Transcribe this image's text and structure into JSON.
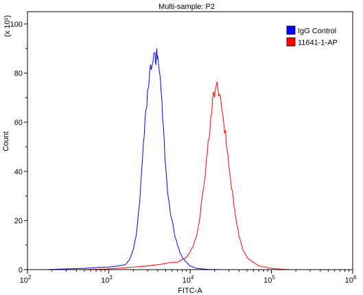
{
  "chart_data": {
    "type": "line",
    "title": "Multi-sample: P2",
    "xlabel": "FITC-A",
    "ylabel": "Count",
    "y_multiplier_label": "(x 10¹)",
    "x_scale": "log",
    "xlim": [
      100,
      1000000
    ],
    "ylim": [
      0,
      105
    ],
    "x_ticks": [
      {
        "value": 100,
        "base": "10",
        "exp": "2"
      },
      {
        "value": 1000,
        "base": "10",
        "exp": "3"
      },
      {
        "value": 10000,
        "base": "10",
        "exp": "4"
      },
      {
        "value": 100000,
        "base": "10",
        "exp": "5"
      },
      {
        "value": 1000000,
        "base": "10",
        "exp": "6"
      }
    ],
    "y_ticks": [
      0,
      20,
      40,
      60,
      80,
      100
    ],
    "legend_position": "top-right",
    "grid": false,
    "series": [
      {
        "name": "IgG Control",
        "color": "#0000ff",
        "x": [
          170,
          300,
          500,
          800,
          1000,
          1300,
          1600,
          1800,
          2000,
          2200,
          2400,
          2600,
          2800,
          3000,
          3200,
          3400,
          3600,
          3700,
          3800,
          3900,
          4000,
          4200,
          4400,
          4600,
          4800,
          5000,
          5300,
          5600,
          6000,
          6500,
          7000,
          7500,
          8000,
          9000,
          10000,
          11000,
          12000,
          14000,
          17000,
          25000
        ],
        "y": [
          0,
          0.3,
          0.5,
          1,
          1,
          1.5,
          2,
          4,
          8,
          15,
          28,
          45,
          60,
          72,
          80,
          85,
          86,
          88,
          84,
          88,
          85,
          80,
          72,
          62,
          52,
          42,
          32,
          25,
          20,
          14,
          10,
          7,
          5,
          3,
          1.5,
          1,
          0.5,
          0.3,
          0.1,
          0
        ]
      },
      {
        "name": "11641-1-AP",
        "color": "#ff0000",
        "x": [
          500,
          1000,
          2000,
          3000,
          4000,
          5000,
          6000,
          7000,
          8000,
          9000,
          10000,
          11000,
          12000,
          13000,
          14000,
          15000,
          16000,
          17000,
          18000,
          19000,
          20000,
          21000,
          22000,
          23000,
          24000,
          26000,
          28000,
          30000,
          33000,
          36000,
          40000,
          45000,
          50000,
          60000,
          70000,
          85000,
          100000,
          130000,
          170000
        ],
        "y": [
          0,
          0.3,
          1,
          1.5,
          2,
          2.5,
          3,
          3,
          4,
          5,
          7,
          10,
          14,
          20,
          28,
          36,
          45,
          54,
          62,
          68,
          72,
          76,
          72,
          70,
          66,
          60,
          52,
          42,
          32,
          22,
          14,
          8,
          5,
          3,
          1.5,
          1,
          0.5,
          0.2,
          0
        ]
      }
    ]
  }
}
